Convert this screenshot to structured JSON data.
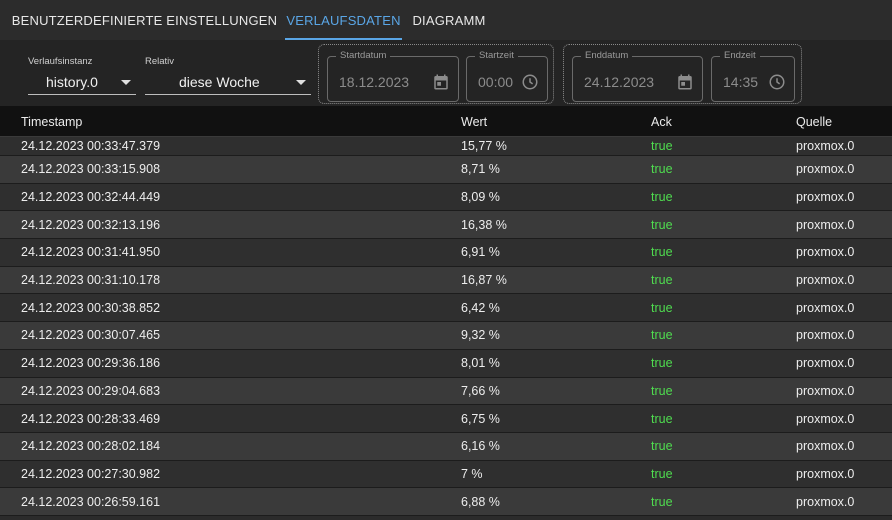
{
  "tabs": [
    {
      "label": "BENUTZERDEFINIERTE EINSTELLUNGEN"
    },
    {
      "label": "VERLAUFSDATEN"
    },
    {
      "label": "DIAGRAMM"
    }
  ],
  "filters": {
    "instance": {
      "label": "Verlaufsinstanz",
      "value": "history.0"
    },
    "relative": {
      "label": "Relativ",
      "value": "diese Woche"
    },
    "start_date": {
      "label": "Startdatum",
      "value": "18.12.2023"
    },
    "start_time": {
      "label": "Startzeit",
      "value": "00:00"
    },
    "end_date": {
      "label": "Enddatum",
      "value": "24.12.2023"
    },
    "end_time": {
      "label": "Endzeit",
      "value": "14:35"
    }
  },
  "table": {
    "columns": {
      "timestamp": "Timestamp",
      "value": "Wert",
      "ack": "Ack",
      "source": "Quelle"
    },
    "rows": [
      {
        "timestamp": "24.12.2023 00:33:47.379",
        "value": "15,77 %",
        "ack": "true",
        "source": "proxmox.0"
      },
      {
        "timestamp": "24.12.2023 00:33:15.908",
        "value": "8,71 %",
        "ack": "true",
        "source": "proxmox.0"
      },
      {
        "timestamp": "24.12.2023 00:32:44.449",
        "value": "8,09 %",
        "ack": "true",
        "source": "proxmox.0"
      },
      {
        "timestamp": "24.12.2023 00:32:13.196",
        "value": "16,38 %",
        "ack": "true",
        "source": "proxmox.0"
      },
      {
        "timestamp": "24.12.2023 00:31:41.950",
        "value": "6,91 %",
        "ack": "true",
        "source": "proxmox.0"
      },
      {
        "timestamp": "24.12.2023 00:31:10.178",
        "value": "16,87 %",
        "ack": "true",
        "source": "proxmox.0"
      },
      {
        "timestamp": "24.12.2023 00:30:38.852",
        "value": "6,42 %",
        "ack": "true",
        "source": "proxmox.0"
      },
      {
        "timestamp": "24.12.2023 00:30:07.465",
        "value": "9,32 %",
        "ack": "true",
        "source": "proxmox.0"
      },
      {
        "timestamp": "24.12.2023 00:29:36.186",
        "value": "8,01 %",
        "ack": "true",
        "source": "proxmox.0"
      },
      {
        "timestamp": "24.12.2023 00:29:04.683",
        "value": "7,66 %",
        "ack": "true",
        "source": "proxmox.0"
      },
      {
        "timestamp": "24.12.2023 00:28:33.469",
        "value": "6,75 %",
        "ack": "true",
        "source": "proxmox.0"
      },
      {
        "timestamp": "24.12.2023 00:28:02.184",
        "value": "6,16 %",
        "ack": "true",
        "source": "proxmox.0"
      },
      {
        "timestamp": "24.12.2023 00:27:30.982",
        "value": "7 %",
        "ack": "true",
        "source": "proxmox.0"
      },
      {
        "timestamp": "24.12.2023 00:26:59.161",
        "value": "6,88 %",
        "ack": "true",
        "source": "proxmox.0"
      }
    ]
  },
  "colors": {
    "accent": "#5aa6e6",
    "ack_true": "#4fdc4f"
  },
  "icons": {
    "date": "calendar-icon",
    "time": "clock-icon",
    "dropdown": "chevron-down-icon"
  }
}
